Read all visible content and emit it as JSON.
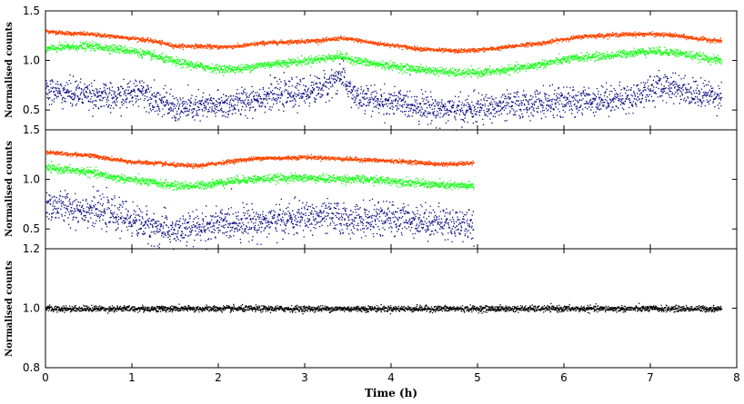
{
  "chart_data": [
    {
      "type": "scatter",
      "panel": "top",
      "ylabel": "Normalised counts",
      "xlim": [
        0,
        8
      ],
      "ylim": [
        0.3,
        1.5
      ],
      "yticks": [
        0.5,
        1.0,
        1.5
      ],
      "ytick_labels": [
        "0.5",
        "1.0",
        "1.5"
      ],
      "xticks": [
        0,
        1,
        2,
        3,
        4,
        5,
        6,
        7,
        8
      ],
      "series": [
        {
          "color": "#ff4500",
          "x": [
            0,
            0.25,
            0.5,
            0.75,
            1.0,
            1.25,
            1.5,
            1.75,
            2.0,
            2.25,
            2.5,
            2.75,
            3.0,
            3.25,
            3.4,
            3.6,
            3.8,
            4.0,
            4.25,
            4.5,
            4.75,
            5.0,
            5.25,
            5.5,
            5.75,
            6.0,
            6.25,
            6.5,
            6.75,
            7.0,
            7.25,
            7.5,
            7.82
          ],
          "y": [
            1.3,
            1.28,
            1.27,
            1.25,
            1.23,
            1.2,
            1.15,
            1.15,
            1.14,
            1.15,
            1.18,
            1.19,
            1.2,
            1.21,
            1.23,
            1.21,
            1.18,
            1.16,
            1.13,
            1.11,
            1.1,
            1.11,
            1.13,
            1.16,
            1.18,
            1.22,
            1.25,
            1.26,
            1.27,
            1.27,
            1.26,
            1.23,
            1.2
          ],
          "scatter": 0.01
        },
        {
          "color": "#19ff19",
          "x": [
            0,
            0.25,
            0.5,
            0.75,
            1.0,
            1.25,
            1.5,
            1.75,
            2.0,
            2.25,
            2.5,
            2.75,
            3.0,
            3.25,
            3.4,
            3.6,
            3.8,
            4.0,
            4.25,
            4.5,
            4.75,
            5.0,
            5.25,
            5.5,
            5.75,
            6.0,
            6.25,
            6.5,
            6.75,
            7.0,
            7.25,
            7.5,
            7.82
          ],
          "y": [
            1.12,
            1.14,
            1.15,
            1.13,
            1.1,
            1.05,
            0.99,
            0.95,
            0.92,
            0.92,
            0.96,
            0.98,
            1.0,
            1.03,
            1.05,
            1.0,
            0.97,
            0.95,
            0.92,
            0.9,
            0.88,
            0.88,
            0.9,
            0.93,
            0.97,
            1.01,
            1.04,
            1.05,
            1.08,
            1.1,
            1.09,
            1.05,
            1.0
          ],
          "scatter": 0.02
        },
        {
          "color": "#0a0a80",
          "x": [
            0,
            0.25,
            0.5,
            0.75,
            1.0,
            1.1,
            1.25,
            1.5,
            1.75,
            2.0,
            2.25,
            2.5,
            2.75,
            3.0,
            3.25,
            3.4,
            3.6,
            3.8,
            4.0,
            4.25,
            4.5,
            4.75,
            5.0,
            5.25,
            5.5,
            5.75,
            6.0,
            6.25,
            6.5,
            6.75,
            7.0,
            7.25,
            7.5,
            7.82
          ],
          "y": [
            0.7,
            0.68,
            0.67,
            0.62,
            0.67,
            0.72,
            0.62,
            0.52,
            0.53,
            0.55,
            0.58,
            0.64,
            0.66,
            0.68,
            0.75,
            0.86,
            0.62,
            0.6,
            0.58,
            0.56,
            0.52,
            0.5,
            0.52,
            0.54,
            0.56,
            0.58,
            0.58,
            0.6,
            0.62,
            0.62,
            0.72,
            0.75,
            0.67,
            0.65
          ],
          "scatter": 0.07
        }
      ]
    },
    {
      "type": "scatter",
      "panel": "middle",
      "ylabel": "Normalised counts",
      "xlim": [
        0,
        8
      ],
      "ylim": [
        0.3,
        1.5
      ],
      "yticks": [
        0.5,
        1.0,
        1.5
      ],
      "ytick_labels": [
        "0.5",
        "1.0",
        "1.5"
      ],
      "xticks": [
        0,
        1,
        2,
        3,
        4,
        5,
        6,
        7,
        8
      ],
      "series": [
        {
          "color": "#ff4500",
          "x": [
            0,
            0.25,
            0.5,
            0.75,
            1.0,
            1.25,
            1.5,
            1.75,
            2.0,
            2.25,
            2.5,
            2.75,
            3.0,
            3.25,
            3.5,
            3.75,
            4.0,
            4.25,
            4.5,
            4.75,
            4.95
          ],
          "y": [
            1.28,
            1.26,
            1.25,
            1.21,
            1.18,
            1.17,
            1.15,
            1.14,
            1.17,
            1.2,
            1.22,
            1.22,
            1.23,
            1.22,
            1.21,
            1.2,
            1.19,
            1.18,
            1.16,
            1.16,
            1.17
          ],
          "scatter": 0.01
        },
        {
          "color": "#19ff19",
          "x": [
            0,
            0.25,
            0.5,
            0.75,
            1.0,
            1.25,
            1.5,
            1.75,
            2.0,
            2.25,
            2.5,
            2.75,
            3.0,
            3.25,
            3.5,
            3.75,
            4.0,
            4.25,
            4.5,
            4.75,
            4.95
          ],
          "y": [
            1.12,
            1.1,
            1.08,
            1.03,
            1.0,
            0.97,
            0.94,
            0.94,
            0.97,
            1.0,
            1.01,
            1.02,
            1.02,
            1.01,
            1.01,
            1.0,
            0.99,
            0.97,
            0.95,
            0.94,
            0.94
          ],
          "scatter": 0.02
        },
        {
          "color": "#0a0a80",
          "x": [
            0,
            0.25,
            0.5,
            0.75,
            1.0,
            1.25,
            1.5,
            1.75,
            2.0,
            2.25,
            2.5,
            2.75,
            3.0,
            3.25,
            3.5,
            3.75,
            4.0,
            4.25,
            4.5,
            4.75,
            4.95
          ],
          "y": [
            0.75,
            0.72,
            0.7,
            0.66,
            0.6,
            0.52,
            0.48,
            0.52,
            0.55,
            0.58,
            0.57,
            0.6,
            0.62,
            0.63,
            0.6,
            0.6,
            0.61,
            0.6,
            0.58,
            0.56,
            0.55
          ],
          "scatter": 0.08
        }
      ]
    },
    {
      "type": "scatter",
      "panel": "bottom",
      "ylabel": "Normalised counts",
      "xlabel": "Time (h)",
      "xlim": [
        0,
        8
      ],
      "ylim": [
        0.8,
        1.2
      ],
      "yticks": [
        0.8,
        1.0,
        1.2
      ],
      "ytick_labels": [
        "0.8",
        "1.0",
        "1.2"
      ],
      "xticks": [
        0,
        1,
        2,
        3,
        4,
        5,
        6,
        7,
        8
      ],
      "xtick_labels": [
        "0",
        "1",
        "2",
        "3",
        "4",
        "5",
        "6",
        "7",
        "8"
      ],
      "series": [
        {
          "color": "#000000",
          "x": [
            0,
            1,
            2,
            3,
            4,
            5,
            6,
            7,
            7.82
          ],
          "y": [
            1.0,
            1.0,
            1.0,
            1.0,
            1.0,
            1.0,
            1.0,
            1.0,
            1.0
          ],
          "scatter": 0.005
        }
      ]
    }
  ]
}
